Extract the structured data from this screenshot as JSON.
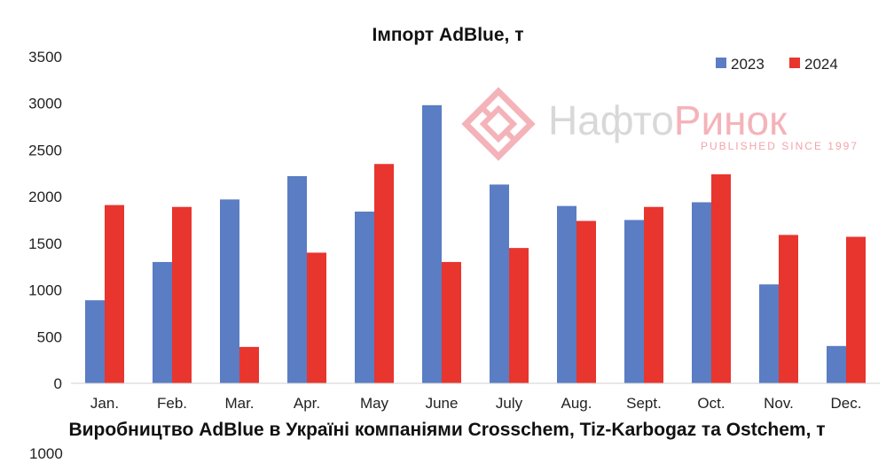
{
  "chart_data": {
    "type": "bar",
    "title": "Імпорт AdBlue, т",
    "categories": [
      "Jan.",
      "Feb.",
      "Mar.",
      "Apr.",
      "May",
      "June",
      "July",
      "Aug.",
      "Sept.",
      "Oct.",
      "Nov.",
      "Dec."
    ],
    "series": [
      {
        "name": "2023",
        "color": "#5a7dc4",
        "values": [
          890,
          1300,
          1970,
          2220,
          1840,
          2980,
          2130,
          1900,
          1750,
          1940,
          1060,
          400
        ]
      },
      {
        "name": "2024",
        "color": "#e8352e",
        "values": [
          1910,
          1890,
          390,
          1400,
          2350,
          1300,
          1450,
          1740,
          1890,
          2240,
          1590,
          1570
        ]
      }
    ],
    "ylim": [
      0,
      3500
    ],
    "yticks": [
      0,
      500,
      1000,
      1500,
      2000,
      2500,
      3000,
      3500
    ],
    "grid": false,
    "legend_position": "top-right"
  },
  "next_chart_title": "Виробництво AdBlue в Україні компаніями Crosschem, Tiz-Karbogaz та Ostchem, т",
  "next_chart_first_tick": "1000",
  "watermark": {
    "brand_part1": "Нафто",
    "brand_part2": "Ринок",
    "tagline": "PUBLISHED SINCE 1997",
    "logo_icon": "naftorynok-logo-icon"
  }
}
